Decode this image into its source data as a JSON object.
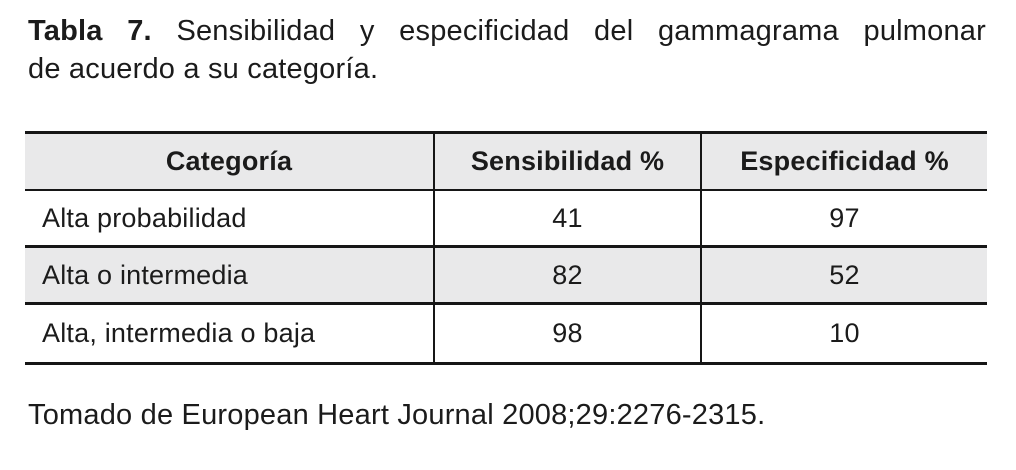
{
  "title": {
    "label": "Tabla 7.",
    "line1": "Sensibilidad y especificidad del gammagrama pulmonar",
    "line2": "de acuerdo a su categoría."
  },
  "table": {
    "columns": [
      "Categoría",
      "Sensibilidad %",
      "Especificidad %"
    ],
    "rows": [
      {
        "categoria": "Alta probabilidad",
        "sensibilidad": "41",
        "especificidad": "97"
      },
      {
        "categoria": "Alta o intermedia",
        "sensibilidad": "82",
        "especificidad": "52"
      },
      {
        "categoria": "Alta, intermedia o baja",
        "sensibilidad": "98",
        "especificidad": "10"
      }
    ]
  },
  "footer": {
    "source": "Tomado de European Heart Journal 2008;29:2276-2315."
  },
  "colors": {
    "background": "#ffffff",
    "text": "#1b1b1b",
    "border": "#161616",
    "header_bg": "#e9e9ea",
    "row_alt_bg": "#e9e9ea"
  }
}
